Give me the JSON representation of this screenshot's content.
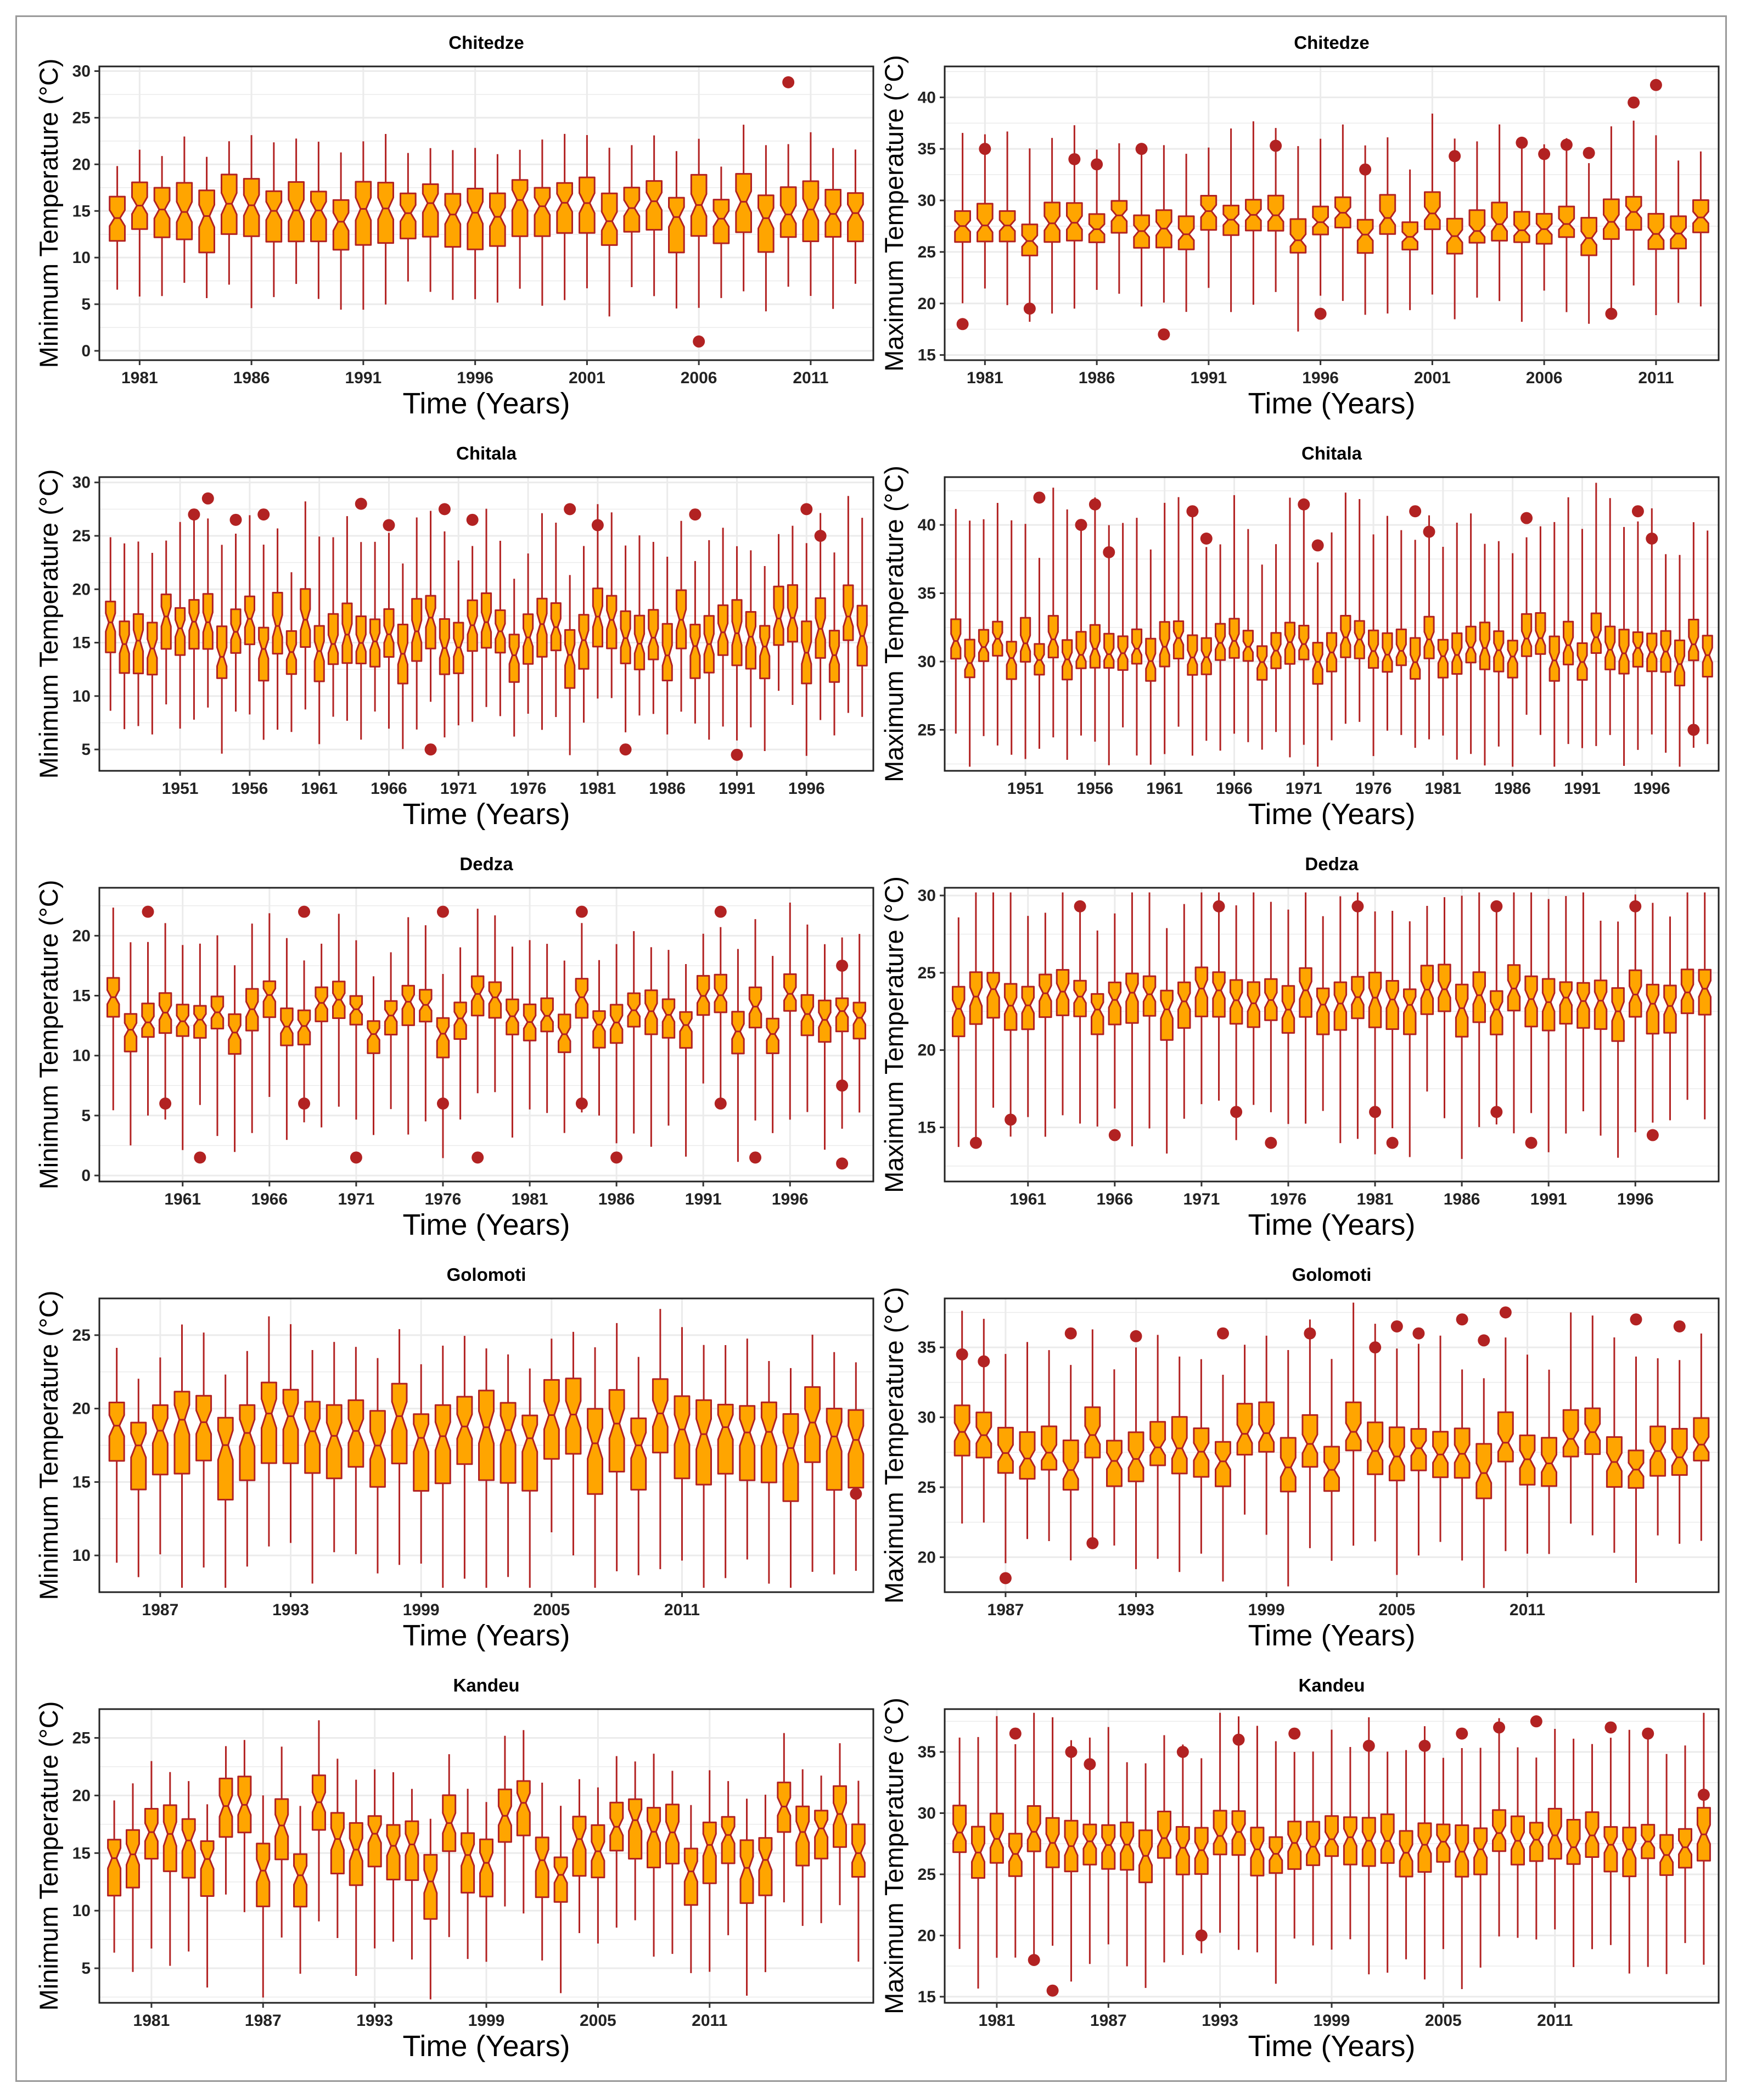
{
  "colors": {
    "box_fill": "#FFA500",
    "box_stroke": "#B22222",
    "whisker": "#B22222",
    "outlier": "#B22222",
    "grid": "#ebebeb"
  },
  "chart_data": [
    {
      "type": "boxplot",
      "station": "Chitedze",
      "title": "Chitedze",
      "xlabel": "Time (Years)",
      "ylabel": "Minimum Temperature (°C)",
      "ylim": [
        -1,
        30.5
      ],
      "yticks": [
        0,
        5,
        10,
        15,
        20,
        25,
        30
      ],
      "x_start": 1980,
      "x_end": 2013,
      "xticks": [
        1981,
        1986,
        1991,
        1996,
        2001,
        2006,
        2011
      ],
      "median_range": [
        13.8,
        16.2
      ],
      "q1_offset": 3.2,
      "q3_offset": 2.6,
      "whisker_low": 6.5,
      "whisker_high": 4.5,
      "outliers": [
        {
          "year": 2006,
          "value": 1
        },
        {
          "year": 2010,
          "value": 28.8
        }
      ]
    },
    {
      "type": "boxplot",
      "station": "Chitedze",
      "title": "Chitedze",
      "xlabel": "Time (Years)",
      "ylabel": "Maximum Temperature (°C)",
      "ylim": [
        14.5,
        43
      ],
      "yticks": [
        15,
        20,
        25,
        30,
        35,
        40
      ],
      "x_start": 1980,
      "x_end": 2013,
      "xticks": [
        1981,
        1986,
        1991,
        1996,
        2001,
        2006,
        2011
      ],
      "median_range": [
        26,
        29
      ],
      "q1_offset": 1.5,
      "q3_offset": 1.8,
      "whisker_low": 6.5,
      "whisker_high": 6.5,
      "outliers": [
        {
          "year": 1980,
          "value": 18
        },
        {
          "year": 1981,
          "value": 35
        },
        {
          "year": 1983,
          "value": 19.5
        },
        {
          "year": 1985,
          "value": 34
        },
        {
          "year": 1986,
          "value": 33.5
        },
        {
          "year": 1988,
          "value": 35
        },
        {
          "year": 1989,
          "value": 17
        },
        {
          "year": 1994,
          "value": 35.3
        },
        {
          "year": 1996,
          "value": 19
        },
        {
          "year": 1998,
          "value": 33
        },
        {
          "year": 2002,
          "value": 34.3
        },
        {
          "year": 2005,
          "value": 35.6
        },
        {
          "year": 2006,
          "value": 34.5
        },
        {
          "year": 2007,
          "value": 35.4
        },
        {
          "year": 2008,
          "value": 34.6
        },
        {
          "year": 2009,
          "value": 19
        },
        {
          "year": 2010,
          "value": 39.5
        },
        {
          "year": 2011,
          "value": 41.2
        }
      ]
    },
    {
      "type": "boxplot",
      "station": "Chitala",
      "title": "Chitala",
      "xlabel": "Time (Years)",
      "ylabel": "Minimum Temperature (°C)",
      "ylim": [
        3,
        30.5
      ],
      "yticks": [
        5,
        10,
        15,
        20,
        25,
        30
      ],
      "x_start": 1946,
      "x_end": 2000,
      "xticks": [
        1951,
        1956,
        1961,
        1966,
        1971,
        1976,
        1981,
        1986,
        1991,
        1996
      ],
      "median_range": [
        13.5,
        17.5
      ],
      "q1_offset": 2.5,
      "q3_offset": 2.5,
      "whisker_low": 6,
      "whisker_high": 7,
      "outliers": [
        {
          "year": 1952,
          "value": 27
        },
        {
          "year": 1953,
          "value": 28.5
        },
        {
          "year": 1955,
          "value": 26.5
        },
        {
          "year": 1957,
          "value": 27
        },
        {
          "year": 1964,
          "value": 28
        },
        {
          "year": 1966,
          "value": 26
        },
        {
          "year": 1969,
          "value": 5
        },
        {
          "year": 1970,
          "value": 27.5
        },
        {
          "year": 1972,
          "value": 26.5
        },
        {
          "year": 1979,
          "value": 27.5
        },
        {
          "year": 1981,
          "value": 26
        },
        {
          "year": 1983,
          "value": 5
        },
        {
          "year": 1988,
          "value": 27
        },
        {
          "year": 1991,
          "value": 4.5
        },
        {
          "year": 1996,
          "value": 27.5
        },
        {
          "year": 1997,
          "value": 25
        }
      ]
    },
    {
      "type": "boxplot",
      "station": "Chitala",
      "title": "Chitala",
      "xlabel": "Time (Years)",
      "ylabel": "Maximum Temperature (°C)",
      "ylim": [
        22,
        43.5
      ],
      "yticks": [
        25,
        30,
        35,
        40
      ],
      "x_start": 1946,
      "x_end": 2000,
      "xticks": [
        1951,
        1956,
        1961,
        1966,
        1971,
        1976,
        1981,
        1986,
        1991,
        1996
      ],
      "median_range": [
        29.8,
        31.8
      ],
      "q1_offset": 1.3,
      "q3_offset": 1.5,
      "whisker_low": 6,
      "whisker_high": 8,
      "outliers": [
        {
          "year": 1952,
          "value": 42
        },
        {
          "year": 1955,
          "value": 40
        },
        {
          "year": 1956,
          "value": 41.5
        },
        {
          "year": 1957,
          "value": 38
        },
        {
          "year": 1963,
          "value": 41
        },
        {
          "year": 1964,
          "value": 39
        },
        {
          "year": 1971,
          "value": 41.5
        },
        {
          "year": 1972,
          "value": 38.5
        },
        {
          "year": 1979,
          "value": 41
        },
        {
          "year": 1980,
          "value": 39.5
        },
        {
          "year": 1987,
          "value": 40.5
        },
        {
          "year": 1995,
          "value": 41
        },
        {
          "year": 1996,
          "value": 39
        },
        {
          "year": 1999,
          "value": 25
        }
      ]
    },
    {
      "type": "boxplot",
      "station": "Dedza",
      "title": "Dedza",
      "xlabel": "Time (Years)",
      "ylabel": "Minimum Temperature (°C)",
      "ylim": [
        -0.5,
        24
      ],
      "yticks": [
        0,
        5,
        10,
        15,
        20
      ],
      "x_start": 1957,
      "x_end": 2000,
      "xticks": [
        1961,
        1966,
        1971,
        1976,
        1981,
        1986,
        1991,
        1996
      ],
      "median_range": [
        11.5,
        15.2
      ],
      "q1_offset": 1.6,
      "q3_offset": 1.4,
      "whisker_low": 8,
      "whisker_high": 5,
      "outliers": [
        {
          "year": 1959,
          "value": 22
        },
        {
          "year": 1960,
          "value": 6
        },
        {
          "year": 1962,
          "value": 1.5
        },
        {
          "year": 1968,
          "value": 22
        },
        {
          "year": 1968,
          "value": 6
        },
        {
          "year": 1971,
          "value": 1.5
        },
        {
          "year": 1976,
          "value": 22
        },
        {
          "year": 1976,
          "value": 6
        },
        {
          "year": 1978,
          "value": 1.5
        },
        {
          "year": 1984,
          "value": 22
        },
        {
          "year": 1984,
          "value": 6
        },
        {
          "year": 1986,
          "value": 1.5
        },
        {
          "year": 1992,
          "value": 22
        },
        {
          "year": 1992,
          "value": 6
        },
        {
          "year": 1994,
          "value": 1.5
        },
        {
          "year": 1999,
          "value": 17.5
        },
        {
          "year": 1999,
          "value": 7.5
        },
        {
          "year": 1999,
          "value": 1
        }
      ]
    },
    {
      "type": "boxplot",
      "station": "Dedza",
      "title": "Dedza",
      "xlabel": "Time (Years)",
      "ylabel": "Maximum Temperature (°C)",
      "ylim": [
        11.5,
        30.5
      ],
      "yticks": [
        15,
        20,
        25,
        30
      ],
      "x_start": 1957,
      "x_end": 2000,
      "xticks": [
        1961,
        1966,
        1971,
        1976,
        1981,
        1986,
        1991,
        1996
      ],
      "median_range": [
        22.5,
        24
      ],
      "q1_offset": 1.6,
      "q3_offset": 1.3,
      "whisker_low": 7,
      "whisker_high": 5.5,
      "outliers": [
        {
          "year": 1958,
          "value": 14
        },
        {
          "year": 1960,
          "value": 15.5
        },
        {
          "year": 1964,
          "value": 29.3
        },
        {
          "year": 1966,
          "value": 14.5
        },
        {
          "year": 1972,
          "value": 29.3
        },
        {
          "year": 1973,
          "value": 16
        },
        {
          "year": 1975,
          "value": 14
        },
        {
          "year": 1980,
          "value": 29.3
        },
        {
          "year": 1981,
          "value": 16
        },
        {
          "year": 1982,
          "value": 14
        },
        {
          "year": 1988,
          "value": 29.3
        },
        {
          "year": 1988,
          "value": 16
        },
        {
          "year": 1990,
          "value": 14
        },
        {
          "year": 1996,
          "value": 29.3
        },
        {
          "year": 1997,
          "value": 14.5
        }
      ]
    },
    {
      "type": "boxplot",
      "station": "Golomoti",
      "title": "Golomoti",
      "xlabel": "Time (Years)",
      "ylabel": "Minimum Temperature (°C)",
      "ylim": [
        7.5,
        27.5
      ],
      "yticks": [
        10,
        15,
        20,
        25
      ],
      "x_start": 1985,
      "x_end": 2019,
      "xticks": [
        1987,
        1993,
        1999,
        2005,
        2011
      ],
      "median_range": [
        17.3,
        19.7
      ],
      "q1_offset": 3,
      "q3_offset": 2,
      "whisker_low": 7,
      "whisker_high": 4,
      "outliers": [
        {
          "year": 2019,
          "value": 14.2
        }
      ]
    },
    {
      "type": "boxplot",
      "station": "Golomoti",
      "title": "Golomoti",
      "xlabel": "Time (Years)",
      "ylabel": "Maximum Temperature (°C)",
      "ylim": [
        17.5,
        38.5
      ],
      "yticks": [
        20,
        25,
        30,
        35
      ],
      "x_start": 1985,
      "x_end": 2019,
      "xticks": [
        1987,
        1993,
        1999,
        2005,
        2011
      ],
      "median_range": [
        26,
        29
      ],
      "q1_offset": 1.5,
      "q3_offset": 1.8,
      "whisker_low": 6,
      "whisker_high": 6,
      "outliers": [
        {
          "year": 1985,
          "value": 34.5
        },
        {
          "year": 1986,
          "value": 34
        },
        {
          "year": 1987,
          "value": 18.5
        },
        {
          "year": 1990,
          "value": 36
        },
        {
          "year": 1991,
          "value": 21
        },
        {
          "year": 1993,
          "value": 35.8
        },
        {
          "year": 1997,
          "value": 36
        },
        {
          "year": 2001,
          "value": 36
        },
        {
          "year": 2004,
          "value": 35
        },
        {
          "year": 2005,
          "value": 36.5
        },
        {
          "year": 2006,
          "value": 36
        },
        {
          "year": 2008,
          "value": 37
        },
        {
          "year": 2009,
          "value": 35.5
        },
        {
          "year": 2010,
          "value": 37.5
        },
        {
          "year": 2016,
          "value": 37
        },
        {
          "year": 2018,
          "value": 36.5
        }
      ]
    },
    {
      "type": "boxplot",
      "station": "Kandeu",
      "title": "Kandeu",
      "xlabel": "Time (Years)",
      "ylabel": "Minimum Temperature (°C)",
      "ylim": [
        2,
        27.5
      ],
      "yticks": [
        5,
        10,
        15,
        20,
        25
      ],
      "x_start": 1979,
      "x_end": 2019,
      "xticks": [
        1981,
        1987,
        1993,
        1999,
        2005,
        2011
      ],
      "median_range": [
        12.5,
        19.5
      ],
      "q1_offset": 2.7,
      "q3_offset": 2,
      "whisker_low": 7,
      "whisker_high": 4,
      "outliers": []
    },
    {
      "type": "boxplot",
      "station": "Kandeu",
      "title": "Kandeu",
      "xlabel": "Time (Years)",
      "ylabel": "Maximum Temperature (°C)",
      "ylim": [
        14.5,
        38.5
      ],
      "yticks": [
        15,
        20,
        25,
        30,
        35
      ],
      "x_start": 1979,
      "x_end": 2019,
      "xticks": [
        1981,
        1987,
        1993,
        1999,
        2005,
        2011
      ],
      "median_range": [
        26.5,
        28.5
      ],
      "q1_offset": 1.8,
      "q3_offset": 1.8,
      "whisker_low": 8,
      "whisker_high": 7,
      "outliers": [
        {
          "year": 1982,
          "value": 36.5
        },
        {
          "year": 1983,
          "value": 18
        },
        {
          "year": 1984,
          "value": 15.5
        },
        {
          "year": 1985,
          "value": 35
        },
        {
          "year": 1986,
          "value": 34
        },
        {
          "year": 1991,
          "value": 35
        },
        {
          "year": 1992,
          "value": 20
        },
        {
          "year": 1994,
          "value": 36
        },
        {
          "year": 1997,
          "value": 36.5
        },
        {
          "year": 2001,
          "value": 35.5
        },
        {
          "year": 2004,
          "value": 35.5
        },
        {
          "year": 2006,
          "value": 36.5
        },
        {
          "year": 2008,
          "value": 37
        },
        {
          "year": 2010,
          "value": 37.5
        },
        {
          "year": 2014,
          "value": 37
        },
        {
          "year": 2016,
          "value": 36.5
        },
        {
          "year": 2019,
          "value": 31.5
        }
      ]
    }
  ]
}
